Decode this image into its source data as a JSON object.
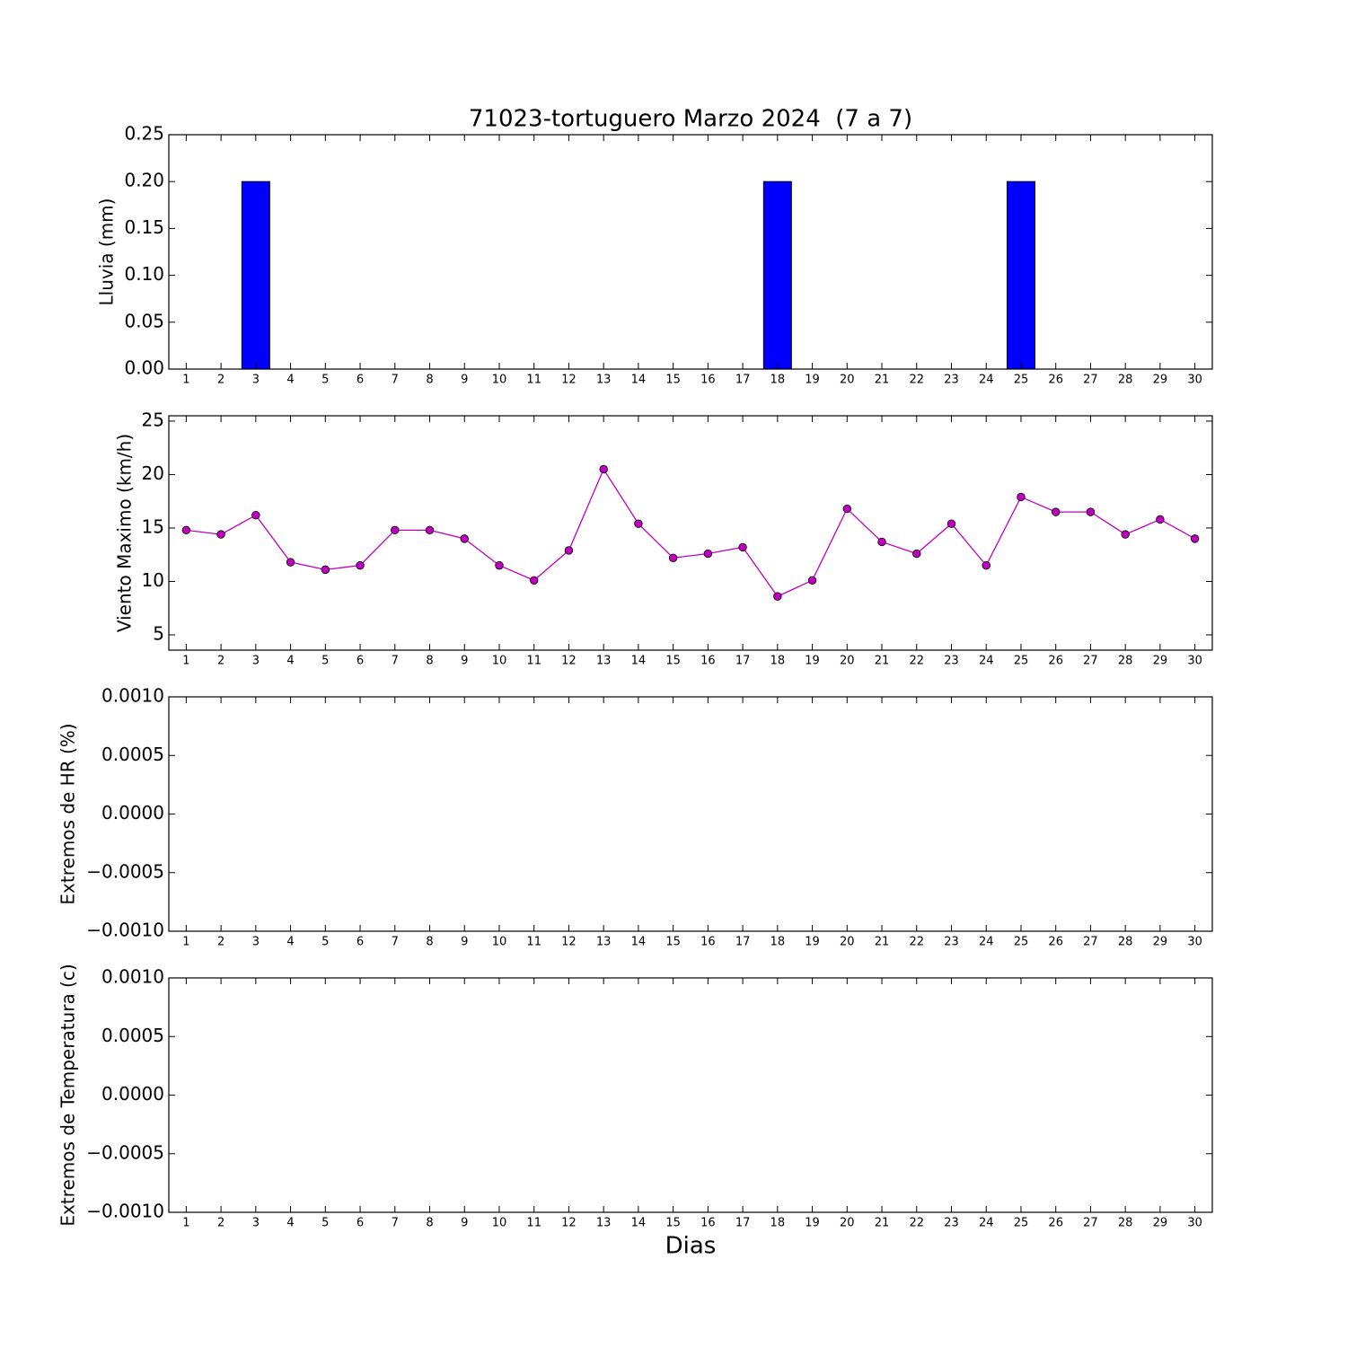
{
  "chart_data": [
    {
      "type": "bar",
      "title": "71023-tortuguero Marzo 2024  (7 a 7)",
      "ylabel": "Lluvia (mm)",
      "x": [
        1,
        2,
        3,
        4,
        5,
        6,
        7,
        8,
        9,
        10,
        11,
        12,
        13,
        14,
        15,
        16,
        17,
        18,
        19,
        20,
        21,
        22,
        23,
        24,
        25,
        26,
        27,
        28,
        29,
        30
      ],
      "values": [
        0,
        0,
        0.2,
        0,
        0,
        0,
        0,
        0,
        0,
        0,
        0,
        0,
        0,
        0,
        0,
        0,
        0,
        0.2,
        0,
        0,
        0,
        0,
        0,
        0,
        0.2,
        0,
        0,
        0,
        0,
        0
      ],
      "color": "#0000ff",
      "bar_width": 0.8,
      "xlim": [
        0.5,
        30.5
      ],
      "xticks": [
        1,
        2,
        3,
        4,
        5,
        6,
        7,
        8,
        9,
        10,
        11,
        12,
        13,
        14,
        15,
        16,
        17,
        18,
        19,
        20,
        21,
        22,
        23,
        24,
        25,
        26,
        27,
        28,
        29,
        30
      ],
      "ylim": [
        0,
        0.25
      ],
      "yticks": [
        {
          "value": 0,
          "label": "0.00"
        },
        0.05,
        {
          "value": 0.1,
          "label": "0.10"
        },
        0.15,
        {
          "value": 0.2,
          "label": "0.20"
        },
        0.25
      ]
    },
    {
      "type": "line",
      "ylabel": "Viento Maximo (km/h)",
      "x": [
        1,
        2,
        3,
        4,
        5,
        6,
        7,
        8,
        9,
        10,
        11,
        12,
        13,
        14,
        15,
        16,
        17,
        18,
        19,
        20,
        21,
        22,
        23,
        24,
        25,
        26,
        27,
        28,
        29,
        30
      ],
      "values": [
        14.8,
        14.4,
        16.2,
        11.8,
        11.1,
        11.5,
        14.8,
        14.8,
        14.0,
        11.5,
        10.1,
        12.9,
        20.5,
        15.4,
        12.2,
        12.6,
        13.2,
        8.6,
        10.1,
        16.8,
        13.7,
        12.6,
        15.4,
        11.5,
        17.9,
        16.5,
        16.5,
        14.4,
        15.8,
        14.0
      ],
      "color": "#bf00bf",
      "xlim": [
        0.5,
        30.5
      ],
      "xticks": [
        1,
        2,
        3,
        4,
        5,
        6,
        7,
        8,
        9,
        10,
        11,
        12,
        13,
        14,
        15,
        16,
        17,
        18,
        19,
        20,
        21,
        22,
        23,
        24,
        25,
        26,
        27,
        28,
        29,
        30
      ],
      "ylim": [
        3.57,
        25.5
      ],
      "yticks": [
        5,
        10,
        15,
        20,
        25
      ]
    },
    {
      "type": "line",
      "ylabel": "Extremos de HR (%)",
      "xlim": [
        0.5,
        30.5
      ],
      "xticks": [
        1,
        2,
        3,
        4,
        5,
        6,
        7,
        8,
        9,
        10,
        11,
        12,
        13,
        14,
        15,
        16,
        17,
        18,
        19,
        20,
        21,
        22,
        23,
        24,
        25,
        26,
        27,
        28,
        29,
        30
      ],
      "ylim": [
        -0.001,
        0.001
      ],
      "yticks": [
        {
          "value": -0.001,
          "label": "−0.0010"
        },
        {
          "value": -0.0005,
          "label": "−0.0005"
        },
        {
          "value": 0,
          "label": "0.0000"
        },
        {
          "value": 0.0005,
          "label": "0.0005"
        },
        {
          "value": 0.001,
          "label": "0.0010"
        }
      ]
    },
    {
      "type": "line",
      "ylabel": "Extremos de Temperatura (c)",
      "xlabel": "Dias",
      "xlim": [
        0.5,
        30.5
      ],
      "xticks": [
        1,
        2,
        3,
        4,
        5,
        6,
        7,
        8,
        9,
        10,
        11,
        12,
        13,
        14,
        15,
        16,
        17,
        18,
        19,
        20,
        21,
        22,
        23,
        24,
        25,
        26,
        27,
        28,
        29,
        30
      ],
      "ylim": [
        -0.001,
        0.001
      ],
      "yticks": [
        {
          "value": -0.001,
          "label": "−0.0010"
        },
        {
          "value": -0.0005,
          "label": "−0.0005"
        },
        {
          "value": 0,
          "label": "0.0000"
        },
        {
          "value": 0.0005,
          "label": "0.0005"
        },
        {
          "value": 0.001,
          "label": "0.0010"
        }
      ]
    }
  ]
}
